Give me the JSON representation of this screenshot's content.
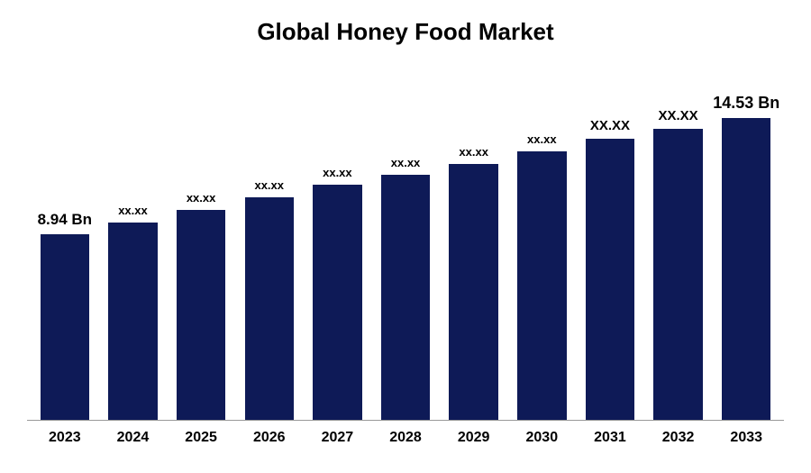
{
  "chart": {
    "type": "bar",
    "title": "Global Honey Food Market",
    "title_fontsize": 26,
    "title_fontweight": 700,
    "title_color": "#000000",
    "background_color": "#ffffff",
    "categories": [
      "2023",
      "2024",
      "2025",
      "2026",
      "2027",
      "2028",
      "2029",
      "2030",
      "2031",
      "2032",
      "2033"
    ],
    "values": [
      8.94,
      9.5,
      10.1,
      10.7,
      11.3,
      11.8,
      12.3,
      12.9,
      13.5,
      14.0,
      14.53
    ],
    "bar_labels": [
      "8.94 Bn",
      "xx.xx",
      "xx.xx",
      "xx.xx",
      "xx.xx",
      "xx.xx",
      "xx.xx",
      "xx.xx",
      "XX.XX",
      "XX.XX",
      "14.53 Bn"
    ],
    "bar_label_fontsizes": [
      17,
      13,
      13,
      13,
      13,
      13,
      13,
      13,
      15,
      15,
      18
    ],
    "bar_color": "#0e1a57",
    "axis_line_color": "#999999",
    "xlabel_fontsize": 16,
    "xlabel_fontweight": 700,
    "xlabel_color": "#000000",
    "label_fontweight": 700,
    "label_color": "#000000",
    "ylim": [
      0,
      16
    ],
    "value_to_pct_scale": 5.7,
    "bar_width_pct": 72
  }
}
